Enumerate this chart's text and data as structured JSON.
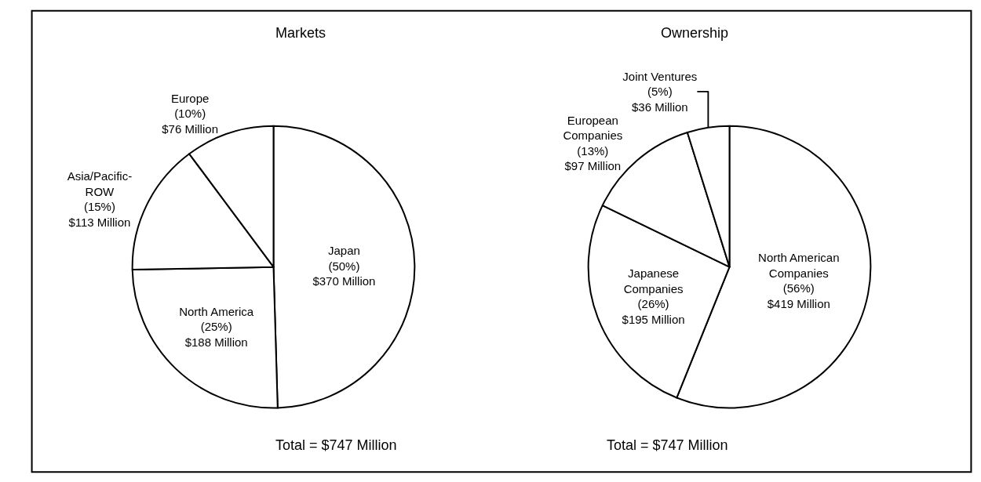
{
  "chart_data": [
    {
      "type": "pie",
      "title": "Markets",
      "categories": [
        "Japan",
        "North America",
        "Asia/Pacific-\nROW",
        "Europe"
      ],
      "values": [
        370,
        188,
        113,
        76
      ],
      "value_labels": [
        "(50%)\n$370 Million",
        "(25%)\n$188 Million",
        "(15%)\n$113 Million",
        "(10%)\n$76 Million"
      ],
      "colors": [
        "#ffffff",
        "#ffffff",
        "#ffffff",
        "#ffffff"
      ],
      "annotations": [
        "Total = $747 Million"
      ]
    },
    {
      "type": "pie",
      "title": "Ownership",
      "categories": [
        "North American\nCompanies",
        "Japanese\nCompanies",
        "European\nCompanies",
        "Joint Ventures"
      ],
      "values": [
        419,
        195,
        97,
        36
      ],
      "value_labels": [
        "(56%)\n$419 Million",
        "(26%)\n$195 Million",
        "(13%)\n$97 Million",
        "(5%)\n$36 Million"
      ],
      "colors": [
        "#ffffff",
        "#ffffff",
        "#ffffff",
        "#ffffff"
      ],
      "annotations": [
        "Total = $747 Million"
      ]
    }
  ]
}
